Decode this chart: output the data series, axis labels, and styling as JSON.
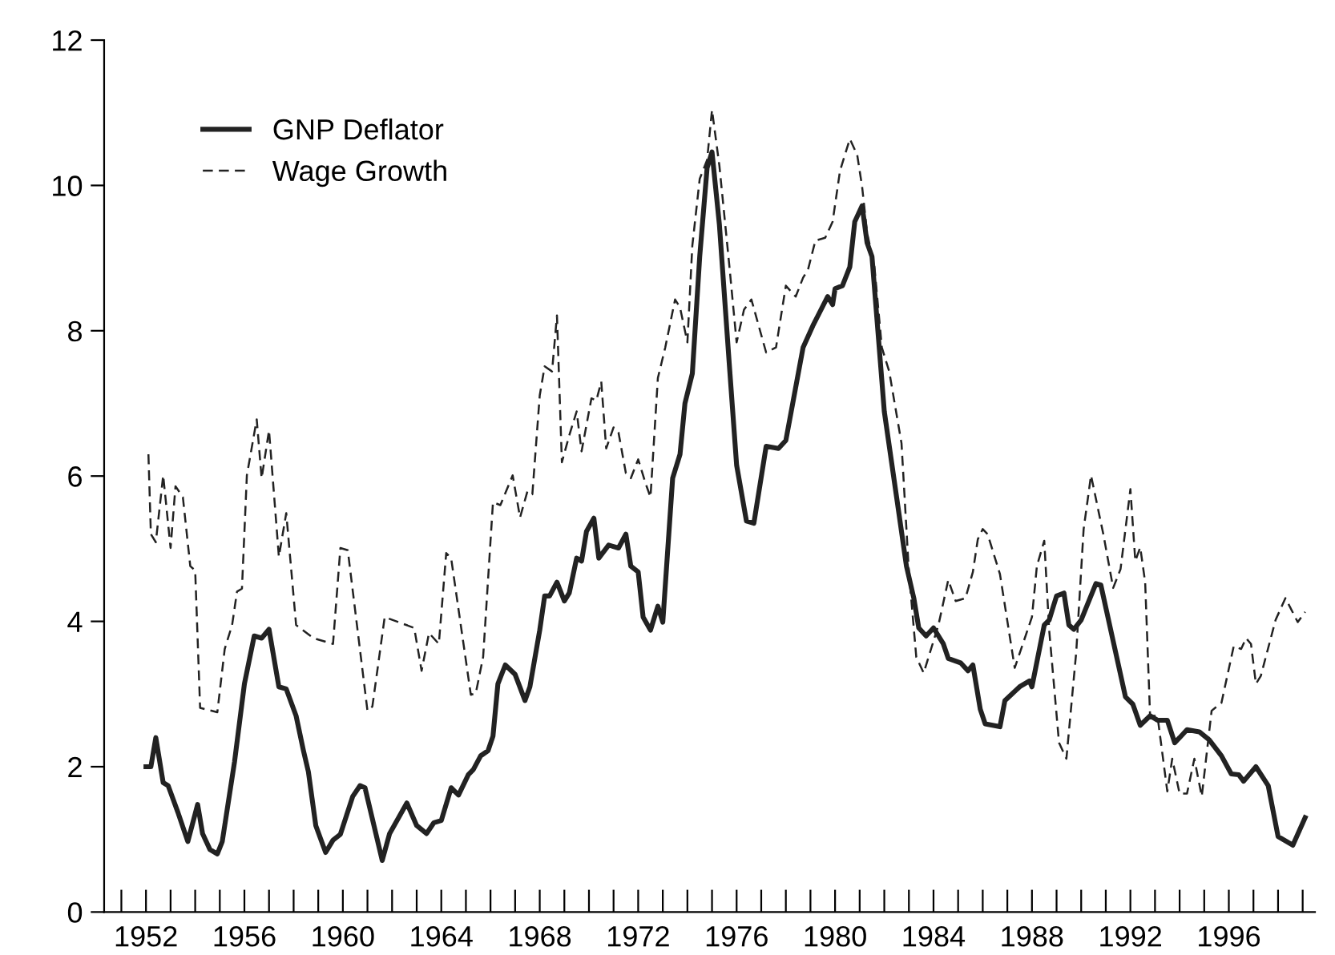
{
  "chart_data": {
    "type": "line",
    "ylim": [
      0,
      12
    ],
    "yticks": [
      0,
      2,
      4,
      6,
      8,
      10,
      12
    ],
    "xlim": [
      1950.3,
      1999.5
    ],
    "xticks": [
      {
        "value": 1951,
        "label": null
      },
      {
        "value": 1952,
        "label": "1952"
      },
      {
        "value": 1953,
        "label": null
      },
      {
        "value": 1954,
        "label": null
      },
      {
        "value": 1955,
        "label": null
      },
      {
        "value": 1956,
        "label": "1956"
      },
      {
        "value": 1957,
        "label": null
      },
      {
        "value": 1958,
        "label": null
      },
      {
        "value": 1959,
        "label": null
      },
      {
        "value": 1960,
        "label": "1960"
      },
      {
        "value": 1961,
        "label": null
      },
      {
        "value": 1962,
        "label": null
      },
      {
        "value": 1963,
        "label": null
      },
      {
        "value": 1964,
        "label": "1964"
      },
      {
        "value": 1965,
        "label": null
      },
      {
        "value": 1966,
        "label": null
      },
      {
        "value": 1967,
        "label": null
      },
      {
        "value": 1968,
        "label": "1968"
      },
      {
        "value": 1969,
        "label": null
      },
      {
        "value": 1970,
        "label": null
      },
      {
        "value": 1971,
        "label": null
      },
      {
        "value": 1972,
        "label": "1972"
      },
      {
        "value": 1973,
        "label": null
      },
      {
        "value": 1974,
        "label": null
      },
      {
        "value": 1975,
        "label": null
      },
      {
        "value": 1976,
        "label": "1976"
      },
      {
        "value": 1977,
        "label": null
      },
      {
        "value": 1978,
        "label": null
      },
      {
        "value": 1979,
        "label": null
      },
      {
        "value": 1980,
        "label": "1980"
      },
      {
        "value": 1981,
        "label": null
      },
      {
        "value": 1982,
        "label": null
      },
      {
        "value": 1983,
        "label": null
      },
      {
        "value": 1984,
        "label": "1984"
      },
      {
        "value": 1985,
        "label": null
      },
      {
        "value": 1986,
        "label": null
      },
      {
        "value": 1987,
        "label": null
      },
      {
        "value": 1988,
        "label": "1988"
      },
      {
        "value": 1989,
        "label": null
      },
      {
        "value": 1990,
        "label": null
      },
      {
        "value": 1991,
        "label": null
      },
      {
        "value": 1992,
        "label": "1992"
      },
      {
        "value": 1993,
        "label": null
      },
      {
        "value": 1994,
        "label": null
      },
      {
        "value": 1995,
        "label": null
      },
      {
        "value": 1996,
        "label": "1996"
      },
      {
        "value": 1997,
        "label": null
      },
      {
        "value": 1998,
        "label": null
      },
      {
        "value": 1999,
        "label": null
      }
    ],
    "grid": false,
    "legend": "top left",
    "marker": "none",
    "series": [
      {
        "name": "GNP Deflator",
        "color": "#222222",
        "line_style": "solid",
        "x": [
          1952.0,
          1952.2,
          1952.4,
          1952.7,
          1952.9,
          1953.3,
          1953.7,
          1954.1,
          1954.3,
          1954.6,
          1954.9,
          1955.1,
          1955.6,
          1956.0,
          1956.4,
          1956.7,
          1957.0,
          1957.4,
          1957.7,
          1958.1,
          1958.4,
          1958.6,
          1958.9,
          1959.3,
          1959.6,
          1959.9,
          1960.4,
          1960.7,
          1960.9,
          1961.6,
          1961.9,
          1962.6,
          1963.0,
          1963.4,
          1963.7,
          1964.0,
          1964.4,
          1964.7,
          1965.1,
          1965.3,
          1965.6,
          1965.9,
          1966.1,
          1966.3,
          1966.6,
          1967.0,
          1967.4,
          1967.6,
          1968.0,
          1968.2,
          1968.4,
          1968.7,
          1969.0,
          1969.2,
          1969.5,
          1969.7,
          1969.9,
          1970.2,
          1970.4,
          1970.8,
          1971.2,
          1971.5,
          1971.7,
          1972.0,
          1972.2,
          1972.5,
          1972.8,
          1973.0,
          1973.4,
          1973.7,
          1973.9,
          1974.2,
          1974.5,
          1974.8,
          1975.0,
          1975.3,
          1975.7,
          1976.0,
          1976.4,
          1976.7,
          1977.2,
          1977.7,
          1978.0,
          1978.7,
          1979.1,
          1979.7,
          1979.9,
          1980.0,
          1980.3,
          1980.6,
          1980.8,
          1981.1,
          1981.3,
          1981.5,
          1982.0,
          1982.5,
          1982.9,
          1983.2,
          1983.4,
          1983.7,
          1984.0,
          1984.4,
          1984.6,
          1985.1,
          1985.4,
          1985.6,
          1985.9,
          1986.1,
          1986.7,
          1986.9,
          1987.5,
          1987.9,
          1988.0,
          1988.5,
          1988.7,
          1989.0,
          1989.3,
          1989.5,
          1989.7,
          1990.0,
          1990.6,
          1990.8,
          1991.3,
          1991.8,
          1992.1,
          1992.4,
          1992.8,
          1993.1,
          1993.5,
          1993.8,
          1994.0,
          1994.3,
          1994.8,
          1995.2,
          1995.7,
          1996.1,
          1996.4,
          1996.6,
          1997.1,
          1997.6,
          1998.0,
          1998.6,
          1999.1
        ],
        "values": [
          2.0,
          2.0,
          2.4,
          1.78,
          1.74,
          1.37,
          0.97,
          1.48,
          1.08,
          0.86,
          0.8,
          0.97,
          2.07,
          3.14,
          3.8,
          3.77,
          3.89,
          3.1,
          3.07,
          2.7,
          2.22,
          1.93,
          1.19,
          0.82,
          0.99,
          1.07,
          1.59,
          1.74,
          1.71,
          0.71,
          1.08,
          1.5,
          1.19,
          1.08,
          1.23,
          1.26,
          1.71,
          1.61,
          1.89,
          1.96,
          2.15,
          2.22,
          2.42,
          3.14,
          3.4,
          3.27,
          2.91,
          3.1,
          3.88,
          4.35,
          4.35,
          4.54,
          4.28,
          4.39,
          4.87,
          4.83,
          5.24,
          5.42,
          4.87,
          5.05,
          5.01,
          5.2,
          4.76,
          4.68,
          4.06,
          3.88,
          4.21,
          3.99,
          5.97,
          6.3,
          7.0,
          7.41,
          9.02,
          10.24,
          10.46,
          9.46,
          7.55,
          6.15,
          5.38,
          5.35,
          6.41,
          6.38,
          6.49,
          7.77,
          8.07,
          8.47,
          8.36,
          8.58,
          8.62,
          8.88,
          9.5,
          9.72,
          9.21,
          9.02,
          6.89,
          5.71,
          4.76,
          4.32,
          3.91,
          3.8,
          3.91,
          3.69,
          3.49,
          3.43,
          3.32,
          3.4,
          2.79,
          2.59,
          2.55,
          2.91,
          3.1,
          3.18,
          3.1,
          3.95,
          4.02,
          4.35,
          4.39,
          3.95,
          3.89,
          4.02,
          4.52,
          4.5,
          3.73,
          2.96,
          2.86,
          2.57,
          2.7,
          2.64,
          2.64,
          2.33,
          2.4,
          2.51,
          2.48,
          2.37,
          2.15,
          1.9,
          1.89,
          1.8,
          2.0,
          1.74,
          1.04,
          0.92,
          1.3
        ]
      },
      {
        "name": "Wage Growth",
        "color": "#222222",
        "line_style": "dashed",
        "x": [
          1952.1,
          1952.2,
          1952.4,
          1952.7,
          1953.0,
          1953.2,
          1953.5,
          1953.8,
          1954.0,
          1954.2,
          1954.9,
          1955.2,
          1955.5,
          1955.7,
          1955.9,
          1956.1,
          1956.5,
          1956.7,
          1957.0,
          1957.4,
          1957.7,
          1958.1,
          1958.8,
          1959.6,
          1959.9,
          1960.2,
          1961.0,
          1961.2,
          1961.7,
          1962.9,
          1963.2,
          1963.5,
          1963.9,
          1964.2,
          1964.4,
          1965.2,
          1965.4,
          1965.7,
          1966.1,
          1966.4,
          1966.9,
          1967.2,
          1967.5,
          1967.7,
          1968.0,
          1968.2,
          1968.5,
          1968.7,
          1968.9,
          1969.2,
          1969.5,
          1969.7,
          1970.1,
          1970.3,
          1970.5,
          1970.7,
          1971.0,
          1971.2,
          1971.5,
          1971.7,
          1972.0,
          1972.3,
          1972.5,
          1972.8,
          1973.1,
          1973.5,
          1973.7,
          1974.0,
          1974.2,
          1974.5,
          1974.8,
          1975.0,
          1975.3,
          1975.7,
          1976.0,
          1976.3,
          1976.6,
          1977.2,
          1977.6,
          1978.0,
          1978.4,
          1978.7,
          1978.9,
          1979.2,
          1979.6,
          1979.9,
          1980.2,
          1980.6,
          1980.9,
          1981.1,
          1981.3,
          1981.6,
          1981.9,
          1982.2,
          1982.7,
          1983.0,
          1983.3,
          1983.6,
          1984.2,
          1984.6,
          1984.9,
          1985.3,
          1985.6,
          1985.8,
          1986.0,
          1986.2,
          1986.7,
          1987.3,
          1988.0,
          1988.2,
          1988.5,
          1988.7,
          1989.1,
          1989.4,
          1989.8,
          1990.1,
          1990.4,
          1990.9,
          1991.3,
          1991.6,
          1992.0,
          1992.2,
          1992.4,
          1992.6,
          1992.8,
          1993.1,
          1993.5,
          1993.7,
          1994.0,
          1994.3,
          1994.6,
          1994.9,
          1995.3,
          1995.7,
          1996.2,
          1996.5,
          1996.7,
          1996.9,
          1997.1,
          1997.3,
          1997.9,
          1998.3,
          1998.8,
          1999.1
        ],
        "values": [
          6.3,
          5.2,
          5.09,
          6.01,
          5.01,
          5.86,
          5.71,
          4.76,
          4.7,
          2.81,
          2.75,
          3.62,
          3.95,
          4.41,
          4.45,
          6.01,
          6.78,
          5.97,
          6.63,
          4.89,
          5.49,
          3.95,
          3.77,
          3.69,
          5.01,
          4.98,
          2.77,
          2.83,
          4.06,
          3.91,
          3.32,
          3.84,
          3.69,
          4.94,
          4.87,
          2.99,
          3.01,
          3.51,
          5.64,
          5.6,
          6.01,
          5.43,
          5.79,
          5.75,
          7.11,
          7.51,
          7.44,
          8.21,
          6.19,
          6.56,
          6.89,
          6.34,
          7.07,
          7.04,
          7.3,
          6.38,
          6.67,
          6.6,
          6.04,
          5.97,
          6.23,
          5.9,
          5.71,
          7.35,
          7.77,
          8.43,
          8.32,
          7.84,
          9.17,
          10.09,
          10.35,
          11.04,
          10.27,
          8.91,
          7.84,
          8.29,
          8.43,
          7.7,
          7.77,
          8.62,
          8.47,
          8.73,
          8.84,
          9.24,
          9.28,
          9.5,
          10.2,
          10.64,
          10.42,
          9.98,
          9.35,
          8.88,
          7.77,
          7.44,
          6.45,
          4.68,
          3.51,
          3.29,
          3.95,
          4.57,
          4.28,
          4.32,
          4.68,
          5.13,
          5.27,
          5.2,
          4.65,
          3.36,
          4.06,
          4.76,
          5.11,
          3.88,
          2.33,
          2.11,
          3.58,
          5.27,
          6.01,
          5.2,
          4.46,
          4.72,
          5.82,
          4.83,
          5.02,
          4.54,
          2.7,
          2.7,
          1.66,
          2.11,
          1.63,
          1.63,
          2.11,
          1.59,
          2.77,
          2.88,
          3.66,
          3.62,
          3.77,
          3.69,
          3.14,
          3.25,
          4.02,
          4.32,
          3.99,
          4.13
        ]
      }
    ]
  }
}
